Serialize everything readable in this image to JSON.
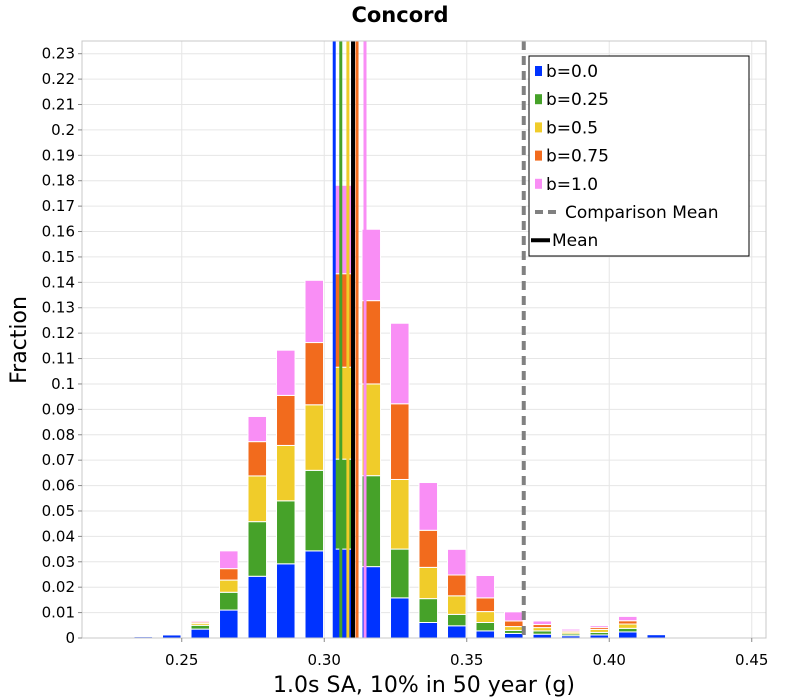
{
  "chart_data": {
    "type": "bar",
    "stacked": true,
    "title": "Concord",
    "xlabel": "1.0s SA, 10% in 50 year (g)",
    "ylabel": "Fraction",
    "xlim": [
      0.215,
      0.455
    ],
    "ylim": [
      0,
      0.235
    ],
    "bin_width": 0.0065,
    "x_ticks": [
      "0.25",
      "0.30",
      "0.35",
      "0.40",
      "0.45"
    ],
    "x_tick_values": [
      0.25,
      0.3,
      0.35,
      0.4,
      0.45
    ],
    "y_ticks": [
      "0",
      "0.01",
      "0.02",
      "0.03",
      "0.04",
      "0.05",
      "0.06",
      "0.07",
      "0.08",
      "0.09",
      "0.1",
      "0.11",
      "0.12",
      "0.13",
      "0.14",
      "0.15",
      "0.16",
      "0.17",
      "0.18",
      "0.19",
      "0.2",
      "0.21",
      "0.22",
      "0.23"
    ],
    "y_tick_values": [
      0,
      0.01,
      0.02,
      0.03,
      0.04,
      0.05,
      0.06,
      0.07,
      0.08,
      0.09,
      0.1,
      0.11,
      0.12,
      0.13,
      0.14,
      0.15,
      0.16,
      0.17,
      0.18,
      0.19,
      0.2,
      0.21,
      0.22,
      0.23
    ],
    "bin_centers": [
      0.2265,
      0.2365,
      0.2465,
      0.2565,
      0.2665,
      0.2765,
      0.2865,
      0.2965,
      0.3065,
      0.3165,
      0.3265,
      0.3365,
      0.3465,
      0.3565,
      0.3665,
      0.3765,
      0.3865,
      0.3965,
      0.4065,
      0.4165
    ],
    "series": [
      {
        "name": "b=0.0",
        "color": "#0033ff",
        "values": [
          0.0003,
          0.0005,
          0.0012,
          0.0035,
          0.011,
          0.0243,
          0.0292,
          0.0343,
          0.035,
          0.0281,
          0.0158,
          0.0061,
          0.0048,
          0.0028,
          0.0018,
          0.0015,
          0.0009,
          0.0012,
          0.0024,
          0.0013
        ]
      },
      {
        "name": "b=0.25",
        "color": "#46a229",
        "values": [
          0,
          0,
          0,
          0.0015,
          0.007,
          0.0215,
          0.0248,
          0.0317,
          0.0354,
          0.0358,
          0.0192,
          0.0094,
          0.0045,
          0.0033,
          0.0012,
          0.0013,
          0.0007,
          0.001,
          0.0014,
          0
        ]
      },
      {
        "name": "b=0.5",
        "color": "#f0cc2a",
        "values": [
          0,
          0,
          0,
          0.0008,
          0.0048,
          0.018,
          0.0218,
          0.0258,
          0.0362,
          0.0361,
          0.0274,
          0.0123,
          0.0073,
          0.0043,
          0.0015,
          0.0013,
          0.0007,
          0.0012,
          0.0017,
          0
        ]
      },
      {
        "name": "b=0.75",
        "color": "#f26b1d",
        "values": [
          0,
          0,
          0,
          0.0005,
          0.0045,
          0.0135,
          0.0197,
          0.0245,
          0.0368,
          0.0328,
          0.0298,
          0.0146,
          0.0082,
          0.0054,
          0.0022,
          0.0012,
          0.0005,
          0.0008,
          0.0013,
          0
        ]
      },
      {
        "name": "b=1.0",
        "color": "#f98ef5",
        "values": [
          0,
          0,
          0,
          0.0005,
          0.007,
          0.0099,
          0.0178,
          0.0245,
          0.0348,
          0.0281,
          0.0317,
          0.0188,
          0.0101,
          0.0088,
          0.0036,
          0.0014,
          0.0007,
          0.0007,
          0.0017,
          0
        ]
      }
    ],
    "mean_lines": [
      {
        "name": "b=0.0",
        "color": "#0033ff",
        "x": 0.3035
      },
      {
        "name": "b=0.25",
        "color": "#46a229",
        "x": 0.3058
      },
      {
        "name": "b=0.5",
        "color": "#f0cc2a",
        "x": 0.3083
      },
      {
        "name": "b=0.75",
        "color": "#f26b1d",
        "x": 0.3115
      },
      {
        "name": "b=1.0",
        "color": "#f98ef5",
        "x": 0.3143
      }
    ],
    "mean": {
      "label": "Mean",
      "x": 0.3101,
      "color": "#000000"
    },
    "comparison_mean": {
      "label": "Comparison Mean",
      "x": 0.37,
      "color": "#808080"
    },
    "legend": {
      "position": "top-right",
      "entries": [
        "b=0.0",
        "b=0.25",
        "b=0.5",
        "b=0.75",
        "b=1.0",
        "Comparison Mean",
        "Mean"
      ]
    },
    "grid": true
  }
}
